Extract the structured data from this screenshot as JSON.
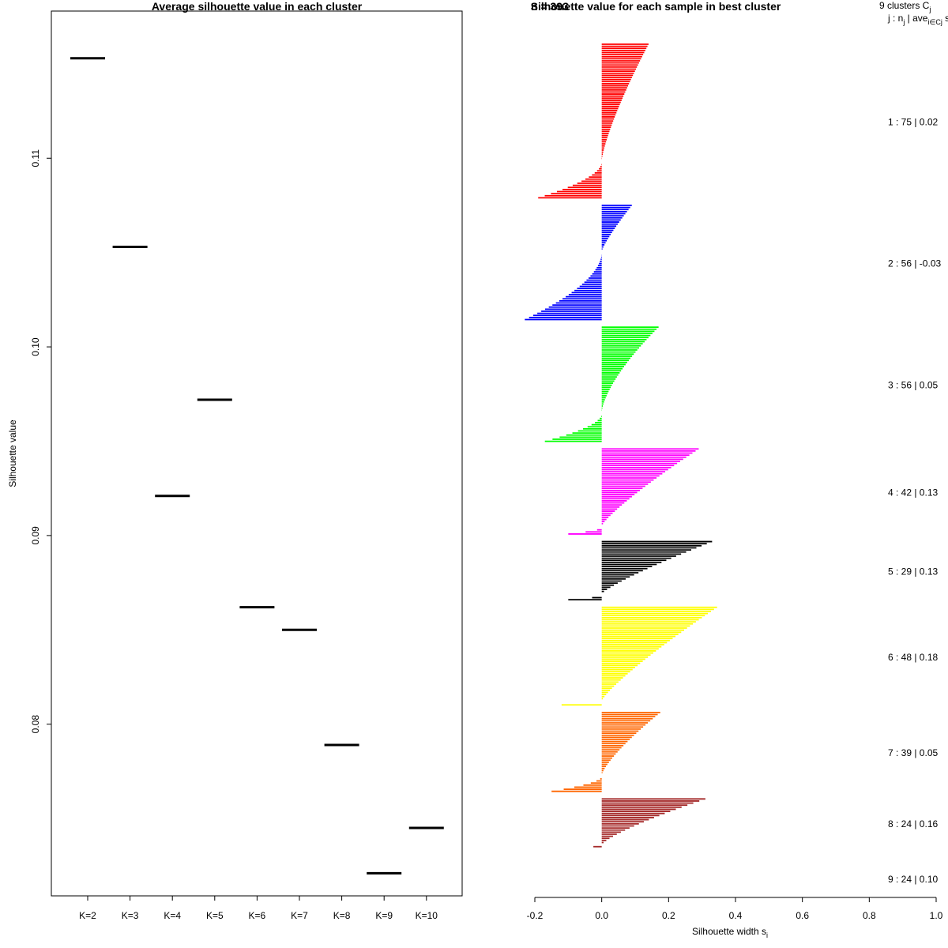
{
  "chart_data": [
    {
      "type": "scatter",
      "marker": "horizontal-segment",
      "title": "Average silhouette value in each cluster",
      "xlabel": "",
      "ylabel": "Silhouette value",
      "categories": [
        "K=2",
        "K=3",
        "K=4",
        "K=5",
        "K=6",
        "K=7",
        "K=8",
        "K=9",
        "K=10"
      ],
      "values": [
        0.1153,
        0.1053,
        0.0921,
        0.0972,
        0.0862,
        0.085,
        0.0789,
        0.0721,
        0.0745
      ],
      "ylim": [
        0.0709,
        0.1178
      ],
      "yticks": [
        "0.08",
        "0.09",
        "0.10",
        "0.11"
      ],
      "ytick_values": [
        0.08,
        0.09,
        0.1,
        0.11
      ],
      "color": "#000000",
      "grid": false
    },
    {
      "type": "bar",
      "orientation": "horizontal",
      "title": "Silhouette value for each sample in best cluster",
      "title_overlap_text": "n = 393",
      "xlabel": "Silhouette width s",
      "xlabel_subscript": "i",
      "xlim": [
        -0.2,
        1.0
      ],
      "xticks": [
        "-0.2",
        "0.0",
        "0.2",
        "0.4",
        "0.6",
        "0.8",
        "1.0"
      ],
      "xtick_values": [
        -0.2,
        0.0,
        0.2,
        0.4,
        0.6,
        0.8,
        1.0
      ],
      "legend_header": {
        "line1": "9  clusters  C",
        "line1_sub": "j",
        "line2": "j :  n",
        "line2_sub": "j",
        "line2_mid": " | ave",
        "line2_mid_sub": "i∈Cj",
        "line2_tail": "  s",
        "line2_tail_sub": "i"
      },
      "clusters": [
        {
          "label": "1 :  75  |  0.02",
          "n": 75,
          "color": "#ff0000",
          "max": 0.14,
          "min": -0.19,
          "n_neg": 18,
          "shape": 1.3
        },
        {
          "label": "2 :  56  |  -0.03",
          "n": 56,
          "color": "#0000ff",
          "max": 0.09,
          "min": -0.23,
          "n_neg": 33,
          "shape": 1.2
        },
        {
          "label": "3 :  56  |  0.05",
          "n": 56,
          "color": "#00ff00",
          "max": 0.17,
          "min": -0.17,
          "n_neg": 14,
          "shape": 1.5
        },
        {
          "label": "4 :  42  |  0.13",
          "n": 42,
          "color": "#ff00ff",
          "max": 0.29,
          "min": -0.1,
          "n_neg": 4,
          "shape": 1.2
        },
        {
          "label": "5 :  29  |  0.13",
          "n": 29,
          "color": "#000000",
          "max": 0.33,
          "min": -0.1,
          "n_neg": 3,
          "shape": 1.2
        },
        {
          "label": "6 :  48  |  0.18",
          "n": 48,
          "color": "#ffff00",
          "max": 0.345,
          "min": -0.12,
          "n_neg": 2,
          "shape": 1.2
        },
        {
          "label": "7 :  39  |  0.05",
          "n": 39,
          "color": "#ff6600",
          "max": 0.175,
          "min": -0.15,
          "n_neg": 8,
          "shape": 1.3
        },
        {
          "label": "8 :  24  |  0.16",
          "n": 24,
          "color": "#a52a2a",
          "max": 0.31,
          "min": -0.025,
          "n_neg": 1,
          "shape": 1.3
        },
        {
          "label": "9 :  24  |  0.10",
          "n": 24,
          "color": "#a52a2a",
          "max": 0,
          "min": 0,
          "n_neg": 0,
          "shape": 1.0,
          "no_bars": true
        }
      ],
      "grid": false
    }
  ]
}
